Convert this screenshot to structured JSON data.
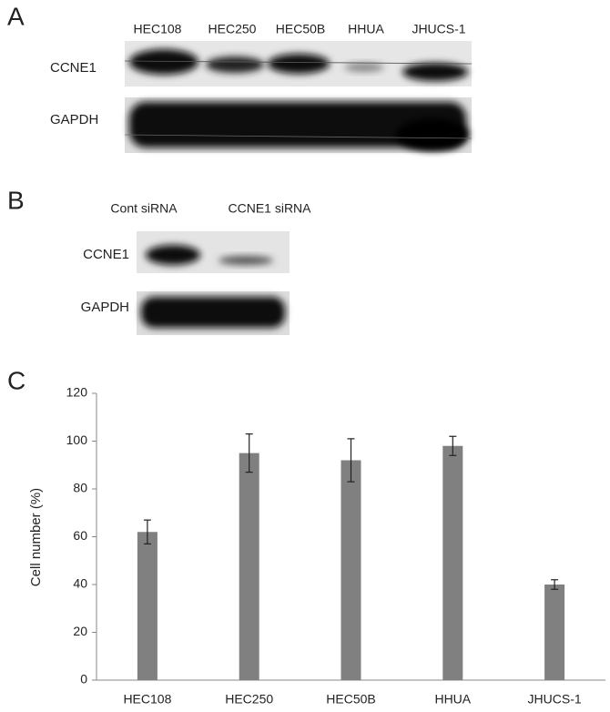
{
  "panel_a": {
    "label": "A",
    "lanes": [
      "HEC108",
      "HEC250",
      "HEC50B",
      "HHUA",
      "JHUCS-1"
    ],
    "proteins": [
      "CCNE1",
      "GAPDH"
    ]
  },
  "panel_b": {
    "label": "B",
    "lanes": [
      "Cont siRNA",
      "CCNE1 siRNA"
    ],
    "proteins": [
      "CCNE1",
      "GAPDH"
    ]
  },
  "chart_data": {
    "type": "bar",
    "panel_label": "C",
    "y_label": "Cell number (%)",
    "categories": [
      "HEC108",
      "HEC250",
      "HEC50B",
      "HHUA",
      "JHUCS-1"
    ],
    "values": [
      62,
      95,
      92,
      98,
      40
    ],
    "errors": [
      5,
      8,
      9,
      4,
      2
    ],
    "color": "#808080",
    "ylim": [
      0,
      120
    ],
    "yticks": [
      0,
      20,
      40,
      60,
      80,
      100,
      120
    ]
  }
}
